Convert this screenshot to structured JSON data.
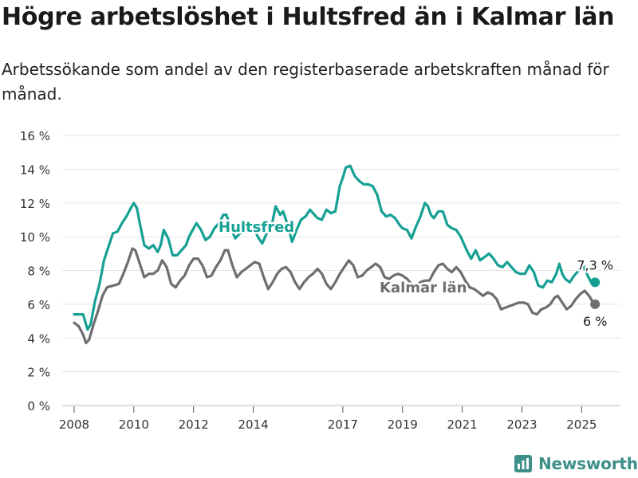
{
  "header": {
    "title": "Högre arbetslöshet i Hultsfred än i Kalmar län",
    "subtitle": "Arbetssökande som andel av den registerbaserade arbetskraften månad för månad."
  },
  "branding": {
    "name": "Newsworthy"
  },
  "colors": {
    "hultsfred": "#16a094",
    "kalmar": "#6e6e72",
    "grid": "#e6e6e6",
    "axis": "#555555",
    "brand": "#3d8f88"
  },
  "chart_data": {
    "type": "line",
    "x_unit": "year",
    "xlim": [
      2007.6,
      2026.3
    ],
    "ylim": [
      0,
      16
    ],
    "y_ticks": [
      {
        "value": 0,
        "label": "0 %"
      },
      {
        "value": 2,
        "label": "2 %"
      },
      {
        "value": 4,
        "label": "4 %"
      },
      {
        "value": 6,
        "label": "6 %"
      },
      {
        "value": 8,
        "label": "8 %"
      },
      {
        "value": 10,
        "label": "10 %"
      },
      {
        "value": 12,
        "label": "12 %"
      },
      {
        "value": 14,
        "label": "14 %"
      },
      {
        "value": 16,
        "label": "16 %"
      }
    ],
    "x_ticks": [
      {
        "value": 2008,
        "label": "2008"
      },
      {
        "value": 2010,
        "label": "2010"
      },
      {
        "value": 2012,
        "label": "2012"
      },
      {
        "value": 2014,
        "label": "2014"
      },
      {
        "value": 2017,
        "label": "2017"
      },
      {
        "value": 2019,
        "label": "2019"
      },
      {
        "value": 2021,
        "label": "2021"
      },
      {
        "value": 2023,
        "label": "2023"
      },
      {
        "value": 2025,
        "label": "2025"
      }
    ],
    "grid": "horizontal",
    "series": [
      {
        "name": "Hultsfred",
        "color": "#16a094",
        "label_at": {
          "x": 2009.9,
          "y": 10.6
        },
        "end_label": "7,3 %",
        "end": {
          "x": 2025.45,
          "y": 7.3
        },
        "points": [
          [
            2008.0,
            5.4
          ],
          [
            2008.3,
            5.4
          ],
          [
            2008.45,
            4.5
          ],
          [
            2008.55,
            4.8
          ],
          [
            2008.7,
            6.2
          ],
          [
            2008.85,
            7.2
          ],
          [
            2009.0,
            8.6
          ],
          [
            2009.15,
            9.4
          ],
          [
            2009.3,
            10.2
          ],
          [
            2009.45,
            10.3
          ],
          [
            2009.6,
            10.8
          ],
          [
            2009.75,
            11.2
          ],
          [
            2009.9,
            11.7
          ],
          [
            2010.0,
            12.0
          ],
          [
            2010.1,
            11.7
          ],
          [
            2010.2,
            10.8
          ],
          [
            2010.35,
            9.5
          ],
          [
            2010.5,
            9.3
          ],
          [
            2010.65,
            9.5
          ],
          [
            2010.8,
            9.1
          ],
          [
            2010.9,
            9.5
          ],
          [
            2011.0,
            10.4
          ],
          [
            2011.15,
            9.9
          ],
          [
            2011.3,
            8.9
          ],
          [
            2011.45,
            8.9
          ],
          [
            2011.6,
            9.2
          ],
          [
            2011.75,
            9.5
          ],
          [
            2011.85,
            10.0
          ],
          [
            2012.0,
            10.5
          ],
          [
            2012.1,
            10.8
          ],
          [
            2012.25,
            10.4
          ],
          [
            2012.4,
            9.8
          ],
          [
            2012.55,
            10.0
          ],
          [
            2012.7,
            10.5
          ],
          [
            2012.85,
            10.8
          ],
          [
            2013.0,
            11.3
          ],
          [
            2013.1,
            11.3
          ],
          [
            2013.25,
            10.5
          ],
          [
            2013.4,
            9.9
          ],
          [
            2013.55,
            10.2
          ],
          [
            2013.7,
            10.3
          ],
          [
            2013.85,
            10.7
          ],
          [
            2014.0,
            10.6
          ],
          [
            2014.15,
            10.0
          ],
          [
            2014.3,
            9.6
          ],
          [
            2014.45,
            10.2
          ],
          [
            2014.6,
            10.5
          ],
          [
            2014.75,
            11.8
          ],
          [
            2014.9,
            11.3
          ],
          [
            2015.0,
            11.5
          ],
          [
            2015.15,
            10.7
          ],
          [
            2015.3,
            9.7
          ],
          [
            2015.45,
            10.4
          ],
          [
            2015.6,
            11.0
          ],
          [
            2015.75,
            11.2
          ],
          [
            2015.9,
            11.6
          ],
          [
            2016.0,
            11.4
          ],
          [
            2016.15,
            11.1
          ],
          [
            2016.3,
            11.0
          ],
          [
            2016.45,
            11.6
          ],
          [
            2016.6,
            11.4
          ],
          [
            2016.75,
            11.5
          ],
          [
            2016.9,
            13.0
          ],
          [
            2017.0,
            13.5
          ],
          [
            2017.1,
            14.1
          ],
          [
            2017.25,
            14.2
          ],
          [
            2017.4,
            13.6
          ],
          [
            2017.55,
            13.3
          ],
          [
            2017.7,
            13.1
          ],
          [
            2017.85,
            13.1
          ],
          [
            2018.0,
            13.0
          ],
          [
            2018.15,
            12.5
          ],
          [
            2018.3,
            11.5
          ],
          [
            2018.45,
            11.2
          ],
          [
            2018.6,
            11.3
          ],
          [
            2018.75,
            11.1
          ],
          [
            2018.9,
            10.7
          ],
          [
            2019.0,
            10.5
          ],
          [
            2019.15,
            10.4
          ],
          [
            2019.3,
            9.9
          ],
          [
            2019.45,
            10.6
          ],
          [
            2019.6,
            11.2
          ],
          [
            2019.75,
            12.0
          ],
          [
            2019.85,
            11.8
          ],
          [
            2019.95,
            11.3
          ],
          [
            2020.05,
            11.1
          ],
          [
            2020.2,
            11.5
          ],
          [
            2020.35,
            11.5
          ],
          [
            2020.5,
            10.7
          ],
          [
            2020.65,
            10.5
          ],
          [
            2020.8,
            10.4
          ],
          [
            2020.95,
            10.0
          ],
          [
            2021.05,
            9.6
          ],
          [
            2021.15,
            9.2
          ],
          [
            2021.3,
            8.7
          ],
          [
            2021.45,
            9.2
          ],
          [
            2021.6,
            8.6
          ],
          [
            2021.75,
            8.8
          ],
          [
            2021.9,
            9.0
          ],
          [
            2022.05,
            8.7
          ],
          [
            2022.2,
            8.3
          ],
          [
            2022.35,
            8.2
          ],
          [
            2022.5,
            8.5
          ],
          [
            2022.65,
            8.2
          ],
          [
            2022.8,
            7.9
          ],
          [
            2022.95,
            7.8
          ],
          [
            2023.1,
            7.8
          ],
          [
            2023.25,
            8.3
          ],
          [
            2023.4,
            7.9
          ],
          [
            2023.55,
            7.1
          ],
          [
            2023.7,
            7.0
          ],
          [
            2023.85,
            7.4
          ],
          [
            2024.0,
            7.3
          ],
          [
            2024.15,
            7.8
          ],
          [
            2024.25,
            8.4
          ],
          [
            2024.35,
            7.8
          ],
          [
            2024.45,
            7.5
          ],
          [
            2024.6,
            7.3
          ],
          [
            2024.75,
            7.7
          ],
          [
            2024.9,
            8.0
          ],
          [
            2025.05,
            8.3
          ],
          [
            2025.2,
            7.7
          ],
          [
            2025.35,
            7.2
          ],
          [
            2025.45,
            7.3
          ]
        ]
      },
      {
        "name": "Kalmar län",
        "color": "#6e6e72",
        "label_at": {
          "x": 2019.7,
          "y": 7.0
        },
        "end_label": "6 %",
        "end": {
          "x": 2025.45,
          "y": 6.0
        },
        "points": [
          [
            2008.0,
            4.9
          ],
          [
            2008.15,
            4.7
          ],
          [
            2008.3,
            4.2
          ],
          [
            2008.4,
            3.7
          ],
          [
            2008.5,
            3.9
          ],
          [
            2008.65,
            4.8
          ],
          [
            2008.8,
            5.6
          ],
          [
            2008.95,
            6.5
          ],
          [
            2009.1,
            7.0
          ],
          [
            2009.3,
            7.1
          ],
          [
            2009.5,
            7.2
          ],
          [
            2009.65,
            7.8
          ],
          [
            2009.8,
            8.5
          ],
          [
            2009.95,
            9.3
          ],
          [
            2010.05,
            9.2
          ],
          [
            2010.2,
            8.4
          ],
          [
            2010.35,
            7.6
          ],
          [
            2010.5,
            7.8
          ],
          [
            2010.65,
            7.8
          ],
          [
            2010.8,
            8.0
          ],
          [
            2010.95,
            8.6
          ],
          [
            2011.1,
            8.2
          ],
          [
            2011.25,
            7.2
          ],
          [
            2011.4,
            7.0
          ],
          [
            2011.55,
            7.4
          ],
          [
            2011.7,
            7.7
          ],
          [
            2011.85,
            8.3
          ],
          [
            2012.0,
            8.7
          ],
          [
            2012.15,
            8.7
          ],
          [
            2012.3,
            8.3
          ],
          [
            2012.45,
            7.6
          ],
          [
            2012.6,
            7.7
          ],
          [
            2012.75,
            8.2
          ],
          [
            2012.9,
            8.6
          ],
          [
            2013.05,
            9.2
          ],
          [
            2013.15,
            9.2
          ],
          [
            2013.3,
            8.3
          ],
          [
            2013.45,
            7.6
          ],
          [
            2013.6,
            7.9
          ],
          [
            2013.75,
            8.1
          ],
          [
            2013.9,
            8.3
          ],
          [
            2014.05,
            8.5
          ],
          [
            2014.2,
            8.4
          ],
          [
            2014.35,
            7.6
          ],
          [
            2014.5,
            6.9
          ],
          [
            2014.65,
            7.3
          ],
          [
            2014.8,
            7.8
          ],
          [
            2014.95,
            8.1
          ],
          [
            2015.1,
            8.2
          ],
          [
            2015.25,
            7.9
          ],
          [
            2015.4,
            7.3
          ],
          [
            2015.55,
            6.9
          ],
          [
            2015.7,
            7.3
          ],
          [
            2015.85,
            7.6
          ],
          [
            2016.0,
            7.8
          ],
          [
            2016.15,
            8.1
          ],
          [
            2016.3,
            7.8
          ],
          [
            2016.45,
            7.2
          ],
          [
            2016.6,
            6.9
          ],
          [
            2016.75,
            7.3
          ],
          [
            2016.9,
            7.8
          ],
          [
            2017.05,
            8.2
          ],
          [
            2017.2,
            8.6
          ],
          [
            2017.35,
            8.3
          ],
          [
            2017.5,
            7.6
          ],
          [
            2017.65,
            7.7
          ],
          [
            2017.8,
            8.0
          ],
          [
            2017.95,
            8.2
          ],
          [
            2018.1,
            8.4
          ],
          [
            2018.25,
            8.2
          ],
          [
            2018.4,
            7.6
          ],
          [
            2018.55,
            7.5
          ],
          [
            2018.7,
            7.7
          ],
          [
            2018.85,
            7.8
          ],
          [
            2019.0,
            7.7
          ],
          [
            2019.15,
            7.5
          ],
          [
            2019.3,
            7.2
          ],
          [
            2019.45,
            7.1
          ],
          [
            2019.6,
            7.3
          ],
          [
            2019.75,
            7.4
          ],
          [
            2019.9,
            7.4
          ],
          [
            2020.05,
            7.9
          ],
          [
            2020.2,
            8.3
          ],
          [
            2020.35,
            8.4
          ],
          [
            2020.5,
            8.1
          ],
          [
            2020.65,
            7.9
          ],
          [
            2020.8,
            8.2
          ],
          [
            2020.95,
            7.9
          ],
          [
            2021.1,
            7.4
          ],
          [
            2021.25,
            7.0
          ],
          [
            2021.4,
            6.9
          ],
          [
            2021.55,
            6.7
          ],
          [
            2021.7,
            6.5
          ],
          [
            2021.85,
            6.7
          ],
          [
            2022.0,
            6.6
          ],
          [
            2022.15,
            6.3
          ],
          [
            2022.3,
            5.7
          ],
          [
            2022.45,
            5.8
          ],
          [
            2022.6,
            5.9
          ],
          [
            2022.75,
            6.0
          ],
          [
            2022.9,
            6.1
          ],
          [
            2023.05,
            6.1
          ],
          [
            2023.2,
            6.0
          ],
          [
            2023.35,
            5.5
          ],
          [
            2023.5,
            5.4
          ],
          [
            2023.65,
            5.7
          ],
          [
            2023.8,
            5.8
          ],
          [
            2023.95,
            6.0
          ],
          [
            2024.1,
            6.4
          ],
          [
            2024.2,
            6.5
          ],
          [
            2024.35,
            6.1
          ],
          [
            2024.5,
            5.7
          ],
          [
            2024.65,
            5.9
          ],
          [
            2024.8,
            6.3
          ],
          [
            2024.95,
            6.6
          ],
          [
            2025.1,
            6.8
          ],
          [
            2025.25,
            6.5
          ],
          [
            2025.35,
            6.2
          ],
          [
            2025.45,
            6.0
          ]
        ]
      }
    ]
  }
}
